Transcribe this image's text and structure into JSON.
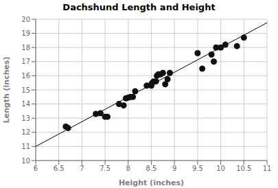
{
  "chart_data": {
    "type": "scatter",
    "title": "Dachshund Length and Height",
    "xlabel": "Height (inches)",
    "ylabel": "Length (inches)",
    "x": [
      6.65,
      6.7,
      7.3,
      7.4,
      7.5,
      7.55,
      7.8,
      7.9,
      7.95,
      8.0,
      8.05,
      8.1,
      8.15,
      8.4,
      8.5,
      8.5,
      8.52,
      8.55,
      8.6,
      8.62,
      8.65,
      8.7,
      8.75,
      8.8,
      8.85,
      8.9,
      9.5,
      9.6,
      9.8,
      9.85,
      9.9,
      10.0,
      10.1,
      10.35,
      10.5
    ],
    "values": [
      12.4,
      12.3,
      13.3,
      13.35,
      13.1,
      13.1,
      14.0,
      13.9,
      14.4,
      14.45,
      14.5,
      14.5,
      14.9,
      15.3,
      15.3,
      15.4,
      15.5,
      15.6,
      15.6,
      16.0,
      16.1,
      16.1,
      16.2,
      15.4,
      15.75,
      16.2,
      17.6,
      16.5,
      17.5,
      17.0,
      18.0,
      18.0,
      18.2,
      18.1,
      18.7
    ],
    "color": "#111111",
    "fit_line": {
      "x": [
        6,
        11
      ],
      "values": [
        11,
        19.75
      ],
      "color": "#000000"
    },
    "xlim": [
      6,
      11
    ],
    "ylim": [
      10,
      20
    ],
    "xticks": [
      6,
      6.5,
      7,
      7.5,
      8,
      8.5,
      9,
      9.5,
      10,
      10.5,
      11
    ],
    "yticks": [
      10,
      11,
      12,
      13,
      14,
      15,
      16,
      17,
      18,
      19,
      20
    ],
    "grid": true
  }
}
